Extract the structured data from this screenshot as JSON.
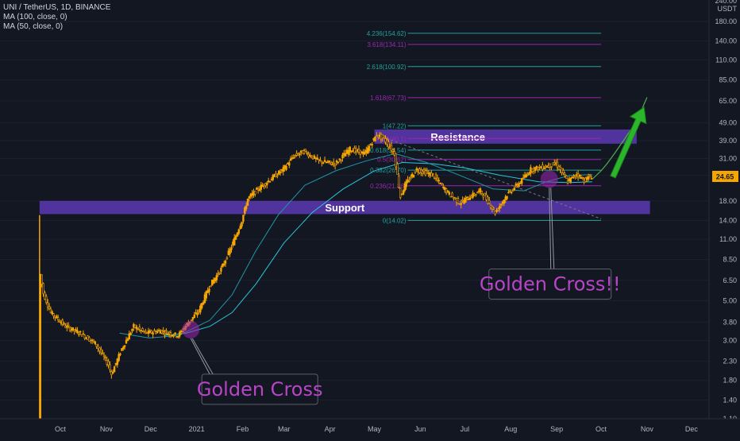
{
  "legend": {
    "symbol": "UNI / TetherUS, 1D, BINANCE",
    "ma1": "MA (100, close, 0)",
    "ma2": "MA (50, close, 0)"
  },
  "colors": {
    "background": "#131722",
    "up_candle": "#f7a600",
    "down_candle": "#f7a600",
    "ma100": "#26c6da",
    "ma50": "#2196a3",
    "fib_teal": "#1fa39b",
    "fib_purple": "#9c27b0",
    "zone_fill": "#6a3fcf",
    "arrow": "#2bb52b",
    "callout_text": "#b845c8",
    "price_tag": "#f7a600"
  },
  "chart_data": {
    "type": "candlestick",
    "y_scale": "log",
    "x_ticks": [
      "Oct",
      "Nov",
      "Dec",
      "2021",
      "Feb",
      "Mar",
      "Apr",
      "May",
      "Jun",
      "Jul",
      "Aug",
      "Sep",
      "Oct",
      "Nov",
      "Dec"
    ],
    "y_ticks": [
      "180.00",
      "140.00",
      "110.00",
      "85.00",
      "65.00",
      "49.00",
      "39.00",
      "31.00",
      "25.00",
      "18.00",
      "14.00",
      "11.00",
      "8.50",
      "6.50",
      "5.00",
      "3.80",
      "3.00",
      "2.30",
      "1.80",
      "1.40",
      "1.10"
    ],
    "y_top_tick": "240.00",
    "currency": "USDT",
    "current_price": "24.65",
    "price_path": [
      {
        "date": "2020-09-17",
        "price": 1.1
      },
      {
        "date": "2020-09-18",
        "price": 7.0
      },
      {
        "date": "2020-09-20",
        "price": 5.5
      },
      {
        "date": "2020-09-25",
        "price": 4.3
      },
      {
        "date": "2020-10-05",
        "price": 3.6
      },
      {
        "date": "2020-10-15",
        "price": 3.3
      },
      {
        "date": "2020-10-25",
        "price": 2.9
      },
      {
        "date": "2020-11-03",
        "price": 2.2
      },
      {
        "date": "2020-11-05",
        "price": 1.95
      },
      {
        "date": "2020-11-12",
        "price": 2.7
      },
      {
        "date": "2020-11-20",
        "price": 3.6
      },
      {
        "date": "2020-11-28",
        "price": 3.3
      },
      {
        "date": "2020-12-08",
        "price": 3.4
      },
      {
        "date": "2020-12-20",
        "price": 3.2
      },
      {
        "date": "2020-12-26",
        "price": 3.7
      },
      {
        "date": "2021-01-03",
        "price": 4.4
      },
      {
        "date": "2021-01-10",
        "price": 6.0
      },
      {
        "date": "2021-01-18",
        "price": 7.5
      },
      {
        "date": "2021-01-25",
        "price": 10.0
      },
      {
        "date": "2021-02-01",
        "price": 14.0
      },
      {
        "date": "2021-02-05",
        "price": 18.5
      },
      {
        "date": "2021-02-12",
        "price": 21.0
      },
      {
        "date": "2021-02-21",
        "price": 24.0
      },
      {
        "date": "2021-03-01",
        "price": 27.0
      },
      {
        "date": "2021-03-08",
        "price": 32.0
      },
      {
        "date": "2021-03-15",
        "price": 34.0
      },
      {
        "date": "2021-03-25",
        "price": 30.0
      },
      {
        "date": "2021-04-05",
        "price": 29.0
      },
      {
        "date": "2021-04-15",
        "price": 35.0
      },
      {
        "date": "2021-04-25",
        "price": 33.0
      },
      {
        "date": "2021-05-03",
        "price": 42.0
      },
      {
        "date": "2021-05-08",
        "price": 40.0
      },
      {
        "date": "2021-05-15",
        "price": 33.0
      },
      {
        "date": "2021-05-19",
        "price": 19.0
      },
      {
        "date": "2021-05-22",
        "price": 22.0
      },
      {
        "date": "2021-05-30",
        "price": 27.0
      },
      {
        "date": "2021-06-10",
        "price": 25.0
      },
      {
        "date": "2021-06-20",
        "price": 20.0
      },
      {
        "date": "2021-06-28",
        "price": 17.5
      },
      {
        "date": "2021-07-05",
        "price": 19.0
      },
      {
        "date": "2021-07-12",
        "price": 20.5
      },
      {
        "date": "2021-07-18",
        "price": 17.5
      },
      {
        "date": "2021-07-22",
        "price": 15.5
      },
      {
        "date": "2021-07-30",
        "price": 19.5
      },
      {
        "date": "2021-08-08",
        "price": 23.0
      },
      {
        "date": "2021-08-15",
        "price": 27.0
      },
      {
        "date": "2021-08-25",
        "price": 28.0
      },
      {
        "date": "2021-09-01",
        "price": 29.0
      },
      {
        "date": "2021-09-05",
        "price": 26.0
      },
      {
        "date": "2021-09-09",
        "price": 23.0
      },
      {
        "date": "2021-09-15",
        "price": 25.5
      },
      {
        "date": "2021-09-20",
        "price": 23.5
      },
      {
        "date": "2021-09-25",
        "price": 24.65
      }
    ],
    "ma100_path": [
      {
        "date": "2020-12-10",
        "price": 3.2
      },
      {
        "date": "2020-12-25",
        "price": 3.3
      },
      {
        "date": "2021-01-10",
        "price": 3.6
      },
      {
        "date": "2021-01-25",
        "price": 4.3
      },
      {
        "date": "2021-02-10",
        "price": 6.2
      },
      {
        "date": "2021-03-01",
        "price": 10.5
      },
      {
        "date": "2021-03-20",
        "price": 15.5
      },
      {
        "date": "2021-04-10",
        "price": 21.0
      },
      {
        "date": "2021-05-01",
        "price": 26.5
      },
      {
        "date": "2021-05-20",
        "price": 29.5
      },
      {
        "date": "2021-06-10",
        "price": 29.0
      },
      {
        "date": "2021-07-01",
        "price": 27.5
      },
      {
        "date": "2021-07-25",
        "price": 25.0
      },
      {
        "date": "2021-08-20",
        "price": 23.0
      },
      {
        "date": "2021-09-10",
        "price": 22.8
      },
      {
        "date": "2021-09-25",
        "price": 23.0
      }
    ],
    "ma50_path": [
      {
        "date": "2020-11-10",
        "price": 3.3
      },
      {
        "date": "2020-11-30",
        "price": 3.1
      },
      {
        "date": "2020-12-20",
        "price": 3.2
      },
      {
        "date": "2021-01-10",
        "price": 3.9
      },
      {
        "date": "2021-01-25",
        "price": 5.4
      },
      {
        "date": "2021-02-10",
        "price": 9.5
      },
      {
        "date": "2021-02-25",
        "price": 15.0
      },
      {
        "date": "2021-03-15",
        "price": 22.0
      },
      {
        "date": "2021-04-05",
        "price": 26.5
      },
      {
        "date": "2021-04-25",
        "price": 30.0
      },
      {
        "date": "2021-05-15",
        "price": 33.0
      },
      {
        "date": "2021-06-05",
        "price": 29.5
      },
      {
        "date": "2021-06-25",
        "price": 25.5
      },
      {
        "date": "2021-07-20",
        "price": 21.0
      },
      {
        "date": "2021-08-10",
        "price": 20.5
      },
      {
        "date": "2021-08-25",
        "price": 23.0
      },
      {
        "date": "2021-09-10",
        "price": 25.0
      },
      {
        "date": "2021-09-25",
        "price": 25.2
      }
    ],
    "projection_path": [
      {
        "date": "2021-09-25",
        "price": 23.8
      },
      {
        "date": "2021-10-01",
        "price": 26.5
      },
      {
        "date": "2021-10-05",
        "price": 29.0
      },
      {
        "date": "2021-10-10",
        "price": 33.0
      },
      {
        "date": "2021-10-17",
        "price": 40.0
      },
      {
        "date": "2021-10-25",
        "price": 50.0
      },
      {
        "date": "2021-11-01",
        "price": 68.0
      }
    ],
    "dashed_trendline": [
      {
        "date": "2021-05-03",
        "price": 42.0
      },
      {
        "date": "2021-10-01",
        "price": 14.3
      }
    ],
    "fib_levels": [
      {
        "label": "4.236(154.62)",
        "price": 154.62,
        "color": "#1fa39b"
      },
      {
        "label": "3.618(134.11)",
        "price": 134.11,
        "color": "#9c27b0"
      },
      {
        "label": "2.618(100.92)",
        "price": 100.92,
        "color": "#1fa39b"
      },
      {
        "label": "1.618(67.73)",
        "price": 67.73,
        "color": "#9c27b0"
      },
      {
        "label": "1(47.22)",
        "price": 47.22,
        "color": "#1fa39b"
      },
      {
        "label": "0.786(40.1)",
        "price": 40.1,
        "color": "#9c27b0"
      },
      {
        "label": "0.618(34.54)",
        "price": 34.54,
        "color": "#1fa39b"
      },
      {
        "label": "0.5(30.62)",
        "price": 30.62,
        "color": "#9c27b0"
      },
      {
        "label": "0.382(26.70)",
        "price": 26.7,
        "color": "#1fa39b"
      },
      {
        "label": "0.236(21.86)",
        "price": 21.86,
        "color": "#9c27b0"
      },
      {
        "label": "0(14.02)",
        "price": 14.02,
        "color": "#1fa39b"
      }
    ],
    "fib_start": "2021-05-01",
    "fib_end": "2021-10-01",
    "zones": [
      {
        "label": "Resistance",
        "top": 45.0,
        "bottom": 37.5,
        "start": "2021-05-01",
        "end": "2021-10-25"
      },
      {
        "label": "Support",
        "top": 18.0,
        "bottom": 15.2,
        "start": "2020-09-17",
        "end": "2021-11-03"
      }
    ],
    "callouts": [
      {
        "label": "Golden Cross",
        "date": "2020-12-28",
        "price": 3.45
      },
      {
        "label": "Golden Cross!!",
        "date": "2021-08-27",
        "price": 23.8
      }
    ]
  }
}
